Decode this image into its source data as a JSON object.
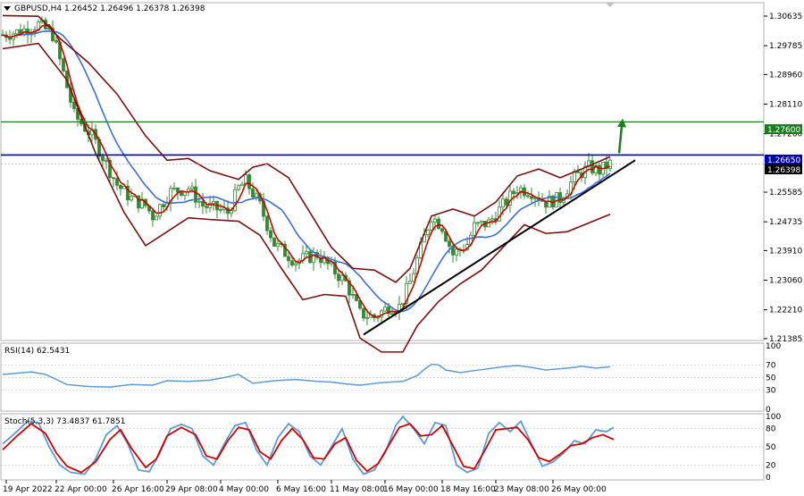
{
  "header": {
    "symbol_text": "GBPUSD,H4",
    "ohlc_text": "1.26452 1.26496 1.26378 1.26398"
  },
  "rsi_panel": {
    "label": "RSI(14) 62.5431",
    "levels": [
      "70",
      "50",
      "30"
    ],
    "range_labels": [
      "100",
      "0"
    ]
  },
  "stoch_panel": {
    "label": "Stoch(5,3,3) 73.4837 61.7851",
    "levels": [
      "80",
      "50",
      "20"
    ],
    "range_labels": [
      "100",
      "0"
    ]
  },
  "markers": {
    "resistance_label": "1.27600",
    "level_label": "1.26650",
    "bid_label": "1.26398"
  },
  "colors": {
    "candle": "#2e8b2e",
    "ma_fast": "#d10000",
    "ma_slow": "#3a6fd8",
    "bands": "#7a1010",
    "resistance": "#1e7d1e",
    "level": "#0000aa",
    "trendline": "#000000",
    "rsi": "#5b9bd5",
    "stoch_main": "#5b9bd5",
    "stoch_signal": "#d10000"
  },
  "chart_data": [
    {
      "type": "candlestick",
      "title": "GBPUSD,H4",
      "ylim": [
        1.2133,
        1.3102
      ],
      "y_ticks": [
        "1.30635",
        "1.29785",
        "1.28960",
        "1.28110",
        "1.27260",
        "1.25585",
        "1.24735",
        "1.23910",
        "1.23060",
        "1.22210",
        "1.21385"
      ],
      "x_ticks": [
        "19 Apr 2022",
        "22 Apr 00:00",
        "26 Apr 16:00",
        "29 Apr 08:00",
        "4 May 00:00",
        "6 May 16:00",
        "11 May 08:00",
        "16 May 00:00",
        "18 May 16:00",
        "23 May 08:00",
        "26 May 00:00"
      ],
      "close_path": [
        [
          0,
          1.301
        ],
        [
          5,
          1.302
        ],
        [
          10,
          1.304
        ],
        [
          14,
          1.301
        ],
        [
          17,
          1.29
        ],
        [
          20,
          1.278
        ],
        [
          25,
          1.272
        ],
        [
          28,
          1.266
        ],
        [
          32,
          1.258
        ],
        [
          36,
          1.254
        ],
        [
          40,
          1.252
        ],
        [
          42,
          1.249
        ],
        [
          47,
          1.256
        ],
        [
          52,
          1.257
        ],
        [
          56,
          1.252
        ],
        [
          60,
          1.251
        ],
        [
          63,
          1.25
        ],
        [
          66,
          1.257
        ],
        [
          68,
          1.259
        ],
        [
          72,
          1.252
        ],
        [
          76,
          1.241
        ],
        [
          82,
          1.236
        ],
        [
          88,
          1.238
        ],
        [
          92,
          1.234
        ],
        [
          96,
          1.23
        ],
        [
          100,
          1.221
        ],
        [
          104,
          1.22
        ],
        [
          108,
          1.223
        ],
        [
          111,
          1.223
        ],
        [
          114,
          1.23
        ],
        [
          118,
          1.243
        ],
        [
          120,
          1.249
        ],
        [
          123,
          1.246
        ],
        [
          126,
          1.238
        ],
        [
          130,
          1.241
        ],
        [
          132,
          1.246
        ],
        [
          136,
          1.247
        ],
        [
          140,
          1.252
        ],
        [
          144,
          1.257
        ],
        [
          148,
          1.256
        ],
        [
          152,
          1.253
        ],
        [
          156,
          1.254
        ],
        [
          160,
          1.26
        ],
        [
          164,
          1.263
        ],
        [
          167,
          1.262
        ],
        [
          170,
          1.264
        ]
      ],
      "series": [
        {
          "name": "Upper band",
          "values": [
            [
              0,
              1.3065
            ],
            [
              10,
              1.3063
            ],
            [
              16,
              1.3
            ],
            [
              24,
              1.293
            ],
            [
              32,
              1.284
            ],
            [
              40,
              1.272
            ],
            [
              46,
              1.265
            ],
            [
              52,
              1.2655
            ],
            [
              58,
              1.262
            ],
            [
              66,
              1.2595
            ],
            [
              70,
              1.263
            ],
            [
              74,
              1.264
            ],
            [
              80,
              1.26
            ],
            [
              86,
              1.25
            ],
            [
              92,
              1.24
            ],
            [
              98,
              1.234
            ],
            [
              104,
              1.2335
            ],
            [
              110,
              1.23
            ],
            [
              114,
              1.234
            ],
            [
              120,
              1.249
            ],
            [
              126,
              1.251
            ],
            [
              132,
              1.249
            ],
            [
              138,
              1.253
            ],
            [
              144,
              1.2605
            ],
            [
              150,
              1.2625
            ],
            [
              156,
              1.26
            ],
            [
              162,
              1.2625
            ],
            [
              170,
              1.266
            ]
          ]
        },
        {
          "name": "Lower band",
          "values": [
            [
              0,
              1.297
            ],
            [
              10,
              1.2985
            ],
            [
              18,
              1.288
            ],
            [
              26,
              1.267
            ],
            [
              34,
              1.25
            ],
            [
              40,
              1.2405
            ],
            [
              46,
              1.2445
            ],
            [
              52,
              1.2485
            ],
            [
              58,
              1.248
            ],
            [
              66,
              1.2475
            ],
            [
              72,
              1.2435
            ],
            [
              78,
              1.234
            ],
            [
              84,
              1.225
            ],
            [
              90,
              1.2265
            ],
            [
              96,
              1.226
            ],
            [
              100,
              1.214
            ],
            [
              106,
              1.21
            ],
            [
              112,
              1.21
            ],
            [
              116,
              1.2175
            ],
            [
              122,
              1.2245
            ],
            [
              128,
              1.2295
            ],
            [
              134,
              1.2335
            ],
            [
              140,
              1.24
            ],
            [
              146,
              1.2465
            ],
            [
              152,
              1.244
            ],
            [
              158,
              1.2445
            ],
            [
              164,
              1.247
            ],
            [
              170,
              1.2495
            ]
          ]
        },
        {
          "name": "Middle band",
          "values": [
            [
              0,
              1.3015
            ],
            [
              10,
              1.302
            ],
            [
              18,
              1.296
            ],
            [
              26,
              1.279
            ],
            [
              34,
              1.265
            ],
            [
              42,
              1.2555
            ],
            [
              50,
              1.2535
            ],
            [
              58,
              1.2535
            ],
            [
              66,
              1.253
            ],
            [
              74,
              1.244
            ],
            [
              82,
              1.2365
            ],
            [
              90,
              1.234
            ],
            [
              98,
              1.225
            ],
            [
              106,
              1.221
            ],
            [
              112,
              1.2215
            ],
            [
              118,
              1.23
            ],
            [
              124,
              1.2375
            ],
            [
              130,
              1.241
            ],
            [
              138,
              1.2465
            ],
            [
              146,
              1.252
            ],
            [
              154,
              1.2525
            ],
            [
              162,
              1.2555
            ],
            [
              170,
              1.2605
            ]
          ]
        }
      ],
      "levels": {
        "resistance": 1.276,
        "horizontal": 1.2665,
        "bid": 1.26398
      },
      "trendline": [
        [
          101,
          1.215
        ],
        [
          177,
          1.265
        ]
      ]
    },
    {
      "type": "line",
      "title": "RSI(14) 62.5431",
      "ylim": [
        0,
        100
      ],
      "y_ticks": [
        "100",
        "70",
        "50",
        "30",
        "0"
      ],
      "values": [
        [
          0,
          55
        ],
        [
          8,
          59
        ],
        [
          12,
          55
        ],
        [
          18,
          39
        ],
        [
          24,
          36
        ],
        [
          30,
          35
        ],
        [
          36,
          39
        ],
        [
          42,
          38
        ],
        [
          46,
          45
        ],
        [
          52,
          44
        ],
        [
          58,
          46
        ],
        [
          62,
          50
        ],
        [
          66,
          55
        ],
        [
          70,
          41
        ],
        [
          76,
          45
        ],
        [
          82,
          47
        ],
        [
          88,
          44
        ],
        [
          92,
          43
        ],
        [
          96,
          40
        ],
        [
          100,
          38
        ],
        [
          106,
          42
        ],
        [
          112,
          44
        ],
        [
          116,
          53
        ],
        [
          118,
          63
        ],
        [
          120,
          71
        ],
        [
          122,
          70
        ],
        [
          124,
          62
        ],
        [
          128,
          58
        ],
        [
          132,
          61
        ],
        [
          136,
          64
        ],
        [
          140,
          67
        ],
        [
          144,
          69
        ],
        [
          148,
          66
        ],
        [
          152,
          62
        ],
        [
          156,
          64
        ],
        [
          160,
          66
        ],
        [
          162,
          68
        ],
        [
          166,
          65
        ],
        [
          170,
          67
        ]
      ]
    },
    {
      "type": "line",
      "title": "Stoch(5,3,3) 73.4837 61.7851",
      "ylim": [
        0,
        100
      ],
      "y_ticks": [
        "100",
        "80",
        "50",
        "20",
        "0"
      ],
      "series": [
        {
          "name": "%K",
          "values": [
            [
              0,
              55
            ],
            [
              3,
              70
            ],
            [
              7,
              92
            ],
            [
              10,
              90
            ],
            [
              13,
              50
            ],
            [
              16,
              20
            ],
            [
              19,
              8
            ],
            [
              23,
              5
            ],
            [
              26,
              30
            ],
            [
              29,
              70
            ],
            [
              32,
              85
            ],
            [
              35,
              55
            ],
            [
              38,
              12
            ],
            [
              41,
              9
            ],
            [
              44,
              40
            ],
            [
              47,
              80
            ],
            [
              50,
              87
            ],
            [
              53,
              80
            ],
            [
              56,
              35
            ],
            [
              59,
              20
            ],
            [
              62,
              55
            ],
            [
              65,
              85
            ],
            [
              68,
              90
            ],
            [
              71,
              45
            ],
            [
              74,
              20
            ],
            [
              77,
              65
            ],
            [
              80,
              88
            ],
            [
              83,
              75
            ],
            [
              86,
              35
            ],
            [
              89,
              20
            ],
            [
              92,
              50
            ],
            [
              95,
              80
            ],
            [
              98,
              30
            ],
            [
              101,
              5
            ],
            [
              104,
              12
            ],
            [
              107,
              40
            ],
            [
              110,
              85
            ],
            [
              112,
              100
            ],
            [
              115,
              80
            ],
            [
              118,
              55
            ],
            [
              121,
              90
            ],
            [
              124,
              85
            ],
            [
              127,
              20
            ],
            [
              130,
              8
            ],
            [
              133,
              15
            ],
            [
              136,
              72
            ],
            [
              139,
              90
            ],
            [
              142,
              75
            ],
            [
              145,
              92
            ],
            [
              148,
              55
            ],
            [
              151,
              18
            ],
            [
              154,
              25
            ],
            [
              157,
              40
            ],
            [
              160,
              60
            ],
            [
              163,
              55
            ],
            [
              166,
              78
            ],
            [
              169,
              75
            ],
            [
              171,
              82
            ]
          ]
        },
        {
          "name": "%D",
          "values": [
            [
              0,
              45
            ],
            [
              4,
              68
            ],
            [
              8,
              88
            ],
            [
              12,
              72
            ],
            [
              15,
              40
            ],
            [
              18,
              18
            ],
            [
              22,
              8
            ],
            [
              26,
              25
            ],
            [
              30,
              62
            ],
            [
              33,
              78
            ],
            [
              36,
              48
            ],
            [
              40,
              16
            ],
            [
              43,
              30
            ],
            [
              46,
              68
            ],
            [
              50,
              82
            ],
            [
              54,
              70
            ],
            [
              57,
              35
            ],
            [
              60,
              30
            ],
            [
              63,
              60
            ],
            [
              66,
              82
            ],
            [
              69,
              78
            ],
            [
              72,
              42
            ],
            [
              75,
              30
            ],
            [
              78,
              60
            ],
            [
              81,
              80
            ],
            [
              84,
              62
            ],
            [
              87,
              32
            ],
            [
              90,
              30
            ],
            [
              93,
              55
            ],
            [
              96,
              65
            ],
            [
              99,
              28
            ],
            [
              102,
              10
            ],
            [
              105,
              22
            ],
            [
              108,
              52
            ],
            [
              111,
              82
            ],
            [
              114,
              88
            ],
            [
              117,
              68
            ],
            [
              120,
              70
            ],
            [
              123,
              85
            ],
            [
              126,
              52
            ],
            [
              129,
              18
            ],
            [
              132,
              14
            ],
            [
              135,
              45
            ],
            [
              138,
              78
            ],
            [
              141,
              80
            ],
            [
              144,
              82
            ],
            [
              147,
              62
            ],
            [
              150,
              32
            ],
            [
              153,
              26
            ],
            [
              156,
              38
            ],
            [
              159,
              52
            ],
            [
              162,
              55
            ],
            [
              165,
              65
            ],
            [
              168,
              70
            ],
            [
              171,
              62
            ]
          ]
        }
      ]
    }
  ]
}
